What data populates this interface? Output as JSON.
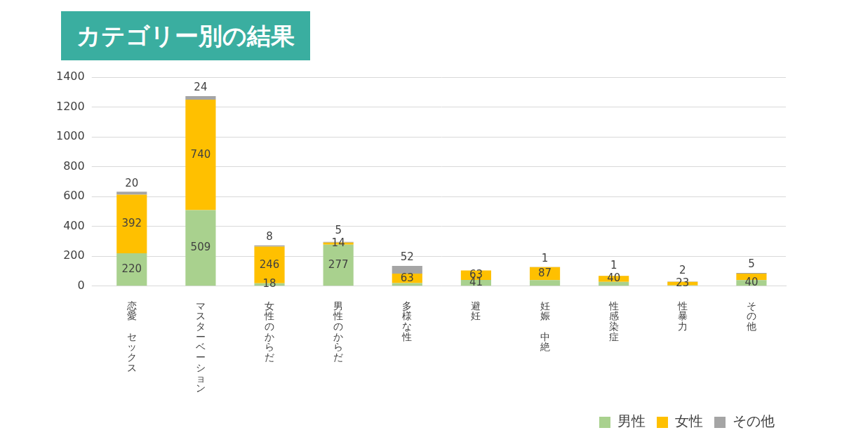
{
  "chart_data": {
    "type": "bar",
    "title": "カテゴリー別の結果",
    "categories": [
      "恋愛 セックス",
      "マスターベーション",
      "女性のからだ",
      "男性のからだ",
      "多様な性",
      "避妊",
      "妊娠 中絶",
      "性感染症",
      "性暴力",
      "その他"
    ],
    "series": [
      {
        "name": "男性",
        "color": "#a9d18e",
        "values": [
          220,
          509,
          18,
          277,
          20,
          41,
          40,
          28,
          5,
          40
        ],
        "value_labels": [
          "220",
          "509",
          "18",
          "277",
          null,
          "41",
          null,
          null,
          null,
          "40"
        ]
      },
      {
        "name": "女性",
        "color": "#ffc000",
        "values": [
          392,
          740,
          246,
          14,
          63,
          63,
          87,
          40,
          23,
          43
        ],
        "value_labels": [
          "392",
          "740",
          "246",
          "14",
          "63",
          "63",
          "87",
          "40",
          "23",
          null
        ]
      },
      {
        "name": "その他",
        "color": "#a5a5a5",
        "values": [
          20,
          24,
          8,
          5,
          52,
          0,
          1,
          1,
          2,
          5
        ],
        "value_labels": [
          "20",
          "24",
          "8",
          "5",
          "52",
          null,
          "1",
          "1",
          "2",
          "5"
        ]
      }
    ],
    "ylim": [
      0,
      1400
    ],
    "yticks": [
      0,
      200,
      400,
      600,
      800,
      1000,
      1200,
      1400
    ],
    "grid": true,
    "stacked": true,
    "data_labels": true,
    "legend": "bottom-right"
  }
}
